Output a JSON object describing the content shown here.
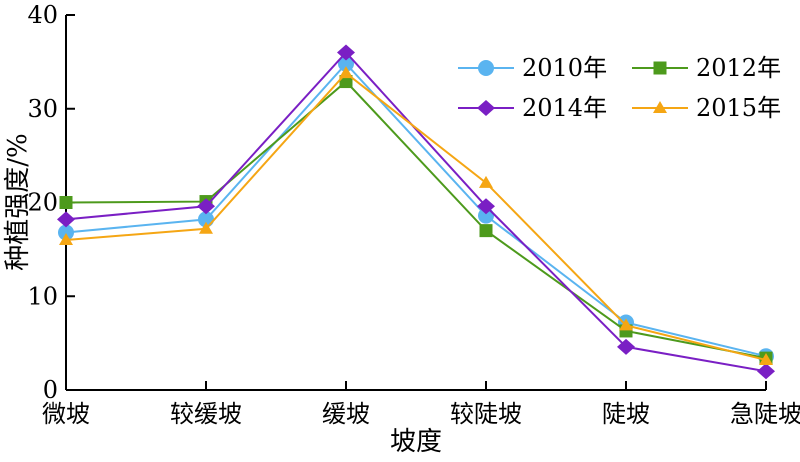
{
  "chart_data": {
    "type": "line",
    "categories": [
      "微坡",
      "较缓坡",
      "缓坡",
      "较陡坡",
      "陡坡",
      "急陡坡"
    ],
    "xlabel": "坡度",
    "ylabel": "种植强度/%",
    "ylim": [
      0,
      40
    ],
    "yticks": [
      0,
      10,
      20,
      30,
      40
    ],
    "grid": false,
    "legend_position": "top-right",
    "series": [
      {
        "name": "2010年",
        "color": "#5ab4f0",
        "marker": "circle",
        "values": [
          16.8,
          18.2,
          34.8,
          18.6,
          7.2,
          3.6
        ]
      },
      {
        "name": "2012年",
        "color": "#4d9a1c",
        "marker": "square",
        "values": [
          20.0,
          20.1,
          32.9,
          17.0,
          6.3,
          3.4
        ]
      },
      {
        "name": "2014年",
        "color": "#7a1fc4",
        "marker": "diamond",
        "values": [
          18.2,
          19.6,
          36.0,
          19.6,
          4.6,
          2.0
        ]
      },
      {
        "name": "2015年",
        "color": "#f5a614",
        "marker": "triangle",
        "values": [
          16.0,
          17.2,
          33.8,
          22.1,
          6.9,
          3.2
        ]
      }
    ]
  }
}
